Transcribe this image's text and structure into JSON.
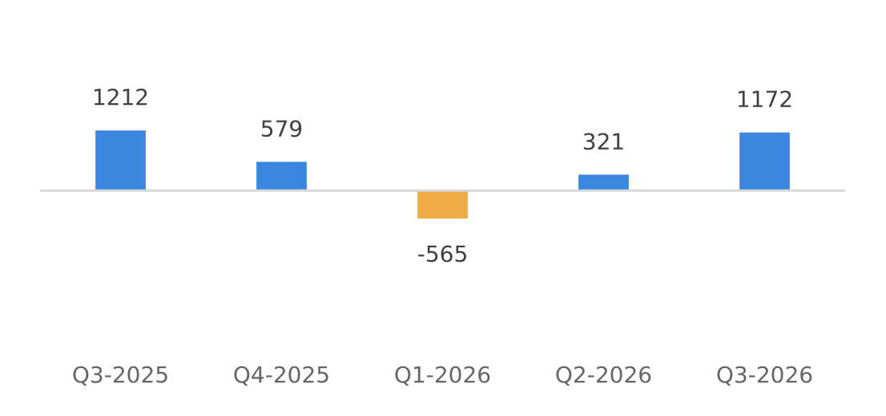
{
  "chart_data": {
    "type": "bar",
    "categories": [
      "Q3-2025",
      "Q4-2025",
      "Q1-2026",
      "Q2-2026",
      "Q3-2026"
    ],
    "values": [
      1212,
      579,
      -565,
      321,
      1172
    ],
    "color": "#3a86e0",
    "negative_color": "#eeaa44",
    "ylim": [
      -3000,
      3200
    ]
  }
}
